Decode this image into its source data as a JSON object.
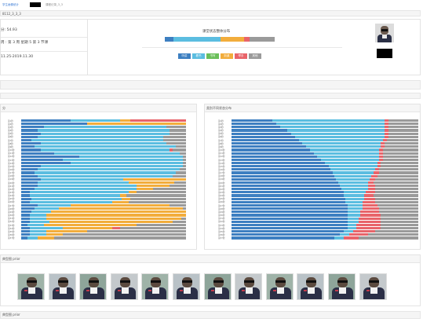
{
  "breadcrumb": {
    "link1": "学生画像统计",
    "link2": "课程记录_3_3"
  },
  "colors": {
    "c1": "#3d7fc1",
    "c2": "#5bbde0",
    "c3": "#6abf5a",
    "c4": "#f2ad3c",
    "c5": "#e8646a",
    "c6": "#9a9a9a"
  },
  "course_id": "8112_3_3_3",
  "info": {
    "score": "分: 54.93",
    "schedule": "周 : 第 3 周 星期 5 第 3 节课",
    "date_range": "11.25-2019.11.30"
  },
  "distribution": {
    "title": "课堂状态整体分布",
    "bar_fractions": [
      0.08,
      0.43,
      0.21,
      0.05,
      0.23
    ],
    "legend": [
      {
        "label": "听讲",
        "color_key": "c1"
      },
      {
        "label": "看书",
        "color_key": "c2"
      },
      {
        "label": "书写",
        "color_key": "c3"
      },
      {
        "label": "趴桌",
        "color_key": "c4"
      },
      {
        "label": "举手",
        "color_key": "c5"
      },
      {
        "label": "其他",
        "color_key": "c6"
      }
    ]
  },
  "left_panel": {
    "title": "分",
    "rows": [
      [
        0.3,
        0.3,
        0.06,
        0.34,
        0
      ],
      [
        0.4,
        0.0,
        0.6,
        0,
        0
      ],
      [
        0.14,
        0.74,
        0,
        0,
        0.12
      ],
      [
        0.1,
        0.8,
        0,
        0,
        0.1
      ],
      [
        0.12,
        0.78,
        0,
        0,
        0.1
      ],
      [
        0.1,
        0.76,
        0,
        0,
        0.14
      ],
      [
        0.06,
        0.8,
        0,
        0,
        0.14
      ],
      [
        0.12,
        0.76,
        0,
        0,
        0.12
      ],
      [
        0.08,
        0.86,
        0,
        0,
        0.06
      ],
      [
        0.12,
        0.78,
        0,
        0.02,
        0.08
      ],
      [
        0.2,
        0.76,
        0,
        0,
        0.04
      ],
      [
        0.35,
        0.63,
        0,
        0,
        0.02
      ],
      [
        0.25,
        0.73,
        0,
        0,
        0.02
      ],
      [
        0.3,
        0.68,
        0,
        0,
        0.02
      ],
      [
        0.12,
        0.86,
        0,
        0,
        0.02
      ],
      [
        0.1,
        0.86,
        0,
        0,
        0.04
      ],
      [
        0.08,
        0.86,
        0,
        0,
        0.06
      ],
      [
        0.1,
        0.82,
        0,
        0,
        0.08
      ],
      [
        0.12,
        0.5,
        0.38,
        0,
        0
      ],
      [
        0.1,
        0.55,
        0.28,
        0,
        0.07
      ],
      [
        0.1,
        0.6,
        0.2,
        0,
        0.1
      ],
      [
        0.08,
        0.62,
        0.1,
        0,
        0.2
      ],
      [
        0.05,
        0.6,
        0.05,
        0,
        0.3
      ],
      [
        0.05,
        0.55,
        0.04,
        0,
        0.36
      ],
      [
        0.06,
        0.55,
        0.05,
        0,
        0.34
      ],
      [
        0.05,
        0.5,
        0.1,
        0,
        0.35
      ],
      [
        0.1,
        0.2,
        0.6,
        0,
        0.1
      ],
      [
        0.08,
        0.15,
        0.75,
        0,
        0.02
      ],
      [
        0.06,
        0.12,
        0.82,
        0,
        0
      ],
      [
        0.05,
        0.1,
        0.85,
        0,
        0
      ],
      [
        0.05,
        0.1,
        0.82,
        0,
        0.03
      ],
      [
        0.05,
        0.12,
        0.75,
        0,
        0.08
      ],
      [
        0.04,
        0.1,
        0.56,
        0,
        0.3
      ],
      [
        0.05,
        0.2,
        0.3,
        0.05,
        0.4
      ],
      [
        0.05,
        0.1,
        0.25,
        0,
        0.6
      ],
      [
        0.05,
        0.1,
        0.1,
        0,
        0.75
      ],
      [
        0.04,
        0.06,
        0.1,
        0,
        0.8
      ]
    ]
  },
  "right_panel": {
    "title": "类别不同状态分布",
    "rows": [
      [
        0.22,
        0.6,
        0,
        0.02,
        0.16
      ],
      [
        0.24,
        0.58,
        0,
        0.02,
        0.16
      ],
      [
        0.26,
        0.56,
        0,
        0.02,
        0.16
      ],
      [
        0.3,
        0.52,
        0,
        0.02,
        0.16
      ],
      [
        0.32,
        0.5,
        0,
        0.02,
        0.16
      ],
      [
        0.34,
        0.48,
        0,
        0.02,
        0.16
      ],
      [
        0.36,
        0.45,
        0,
        0.02,
        0.17
      ],
      [
        0.38,
        0.42,
        0,
        0.02,
        0.18
      ],
      [
        0.4,
        0.4,
        0,
        0.02,
        0.18
      ],
      [
        0.42,
        0.37,
        0,
        0.02,
        0.19
      ],
      [
        0.44,
        0.35,
        0,
        0.02,
        0.19
      ],
      [
        0.46,
        0.33,
        0,
        0.02,
        0.19
      ],
      [
        0.48,
        0.31,
        0,
        0.02,
        0.19
      ],
      [
        0.5,
        0.28,
        0,
        0.02,
        0.2
      ],
      [
        0.52,
        0.26,
        0,
        0.02,
        0.2
      ],
      [
        0.53,
        0.24,
        0,
        0.02,
        0.21
      ],
      [
        0.54,
        0.22,
        0,
        0.03,
        0.21
      ],
      [
        0.55,
        0.2,
        0,
        0.03,
        0.22
      ],
      [
        0.56,
        0.18,
        0,
        0.03,
        0.23
      ],
      [
        0.57,
        0.16,
        0,
        0.03,
        0.24
      ],
      [
        0.58,
        0.15,
        0,
        0.04,
        0.23
      ],
      [
        0.59,
        0.14,
        0,
        0.04,
        0.23
      ],
      [
        0.6,
        0.12,
        0,
        0.05,
        0.23
      ],
      [
        0.6,
        0.11,
        0,
        0.05,
        0.24
      ],
      [
        0.61,
        0.1,
        0,
        0.06,
        0.23
      ],
      [
        0.61,
        0.09,
        0,
        0.07,
        0.23
      ],
      [
        0.62,
        0.08,
        0,
        0.08,
        0.22
      ],
      [
        0.62,
        0.08,
        0,
        0.09,
        0.21
      ],
      [
        0.62,
        0.07,
        0,
        0.1,
        0.21
      ],
      [
        0.62,
        0.07,
        0,
        0.11,
        0.2
      ],
      [
        0.62,
        0.06,
        0,
        0.12,
        0.2
      ],
      [
        0.62,
        0.06,
        0,
        0.12,
        0.2
      ],
      [
        0.62,
        0.05,
        0,
        0.13,
        0.2
      ],
      [
        0.62,
        0.05,
        0,
        0.13,
        0.2
      ],
      [
        0.6,
        0.05,
        0,
        0.12,
        0.23
      ],
      [
        0.58,
        0.05,
        0,
        0.1,
        0.27
      ],
      [
        0.55,
        0.05,
        0,
        0.08,
        0.32
      ]
    ]
  },
  "photos_section": {
    "title": "典型图 prior"
  },
  "footer": {
    "label": "典型图 prior"
  }
}
